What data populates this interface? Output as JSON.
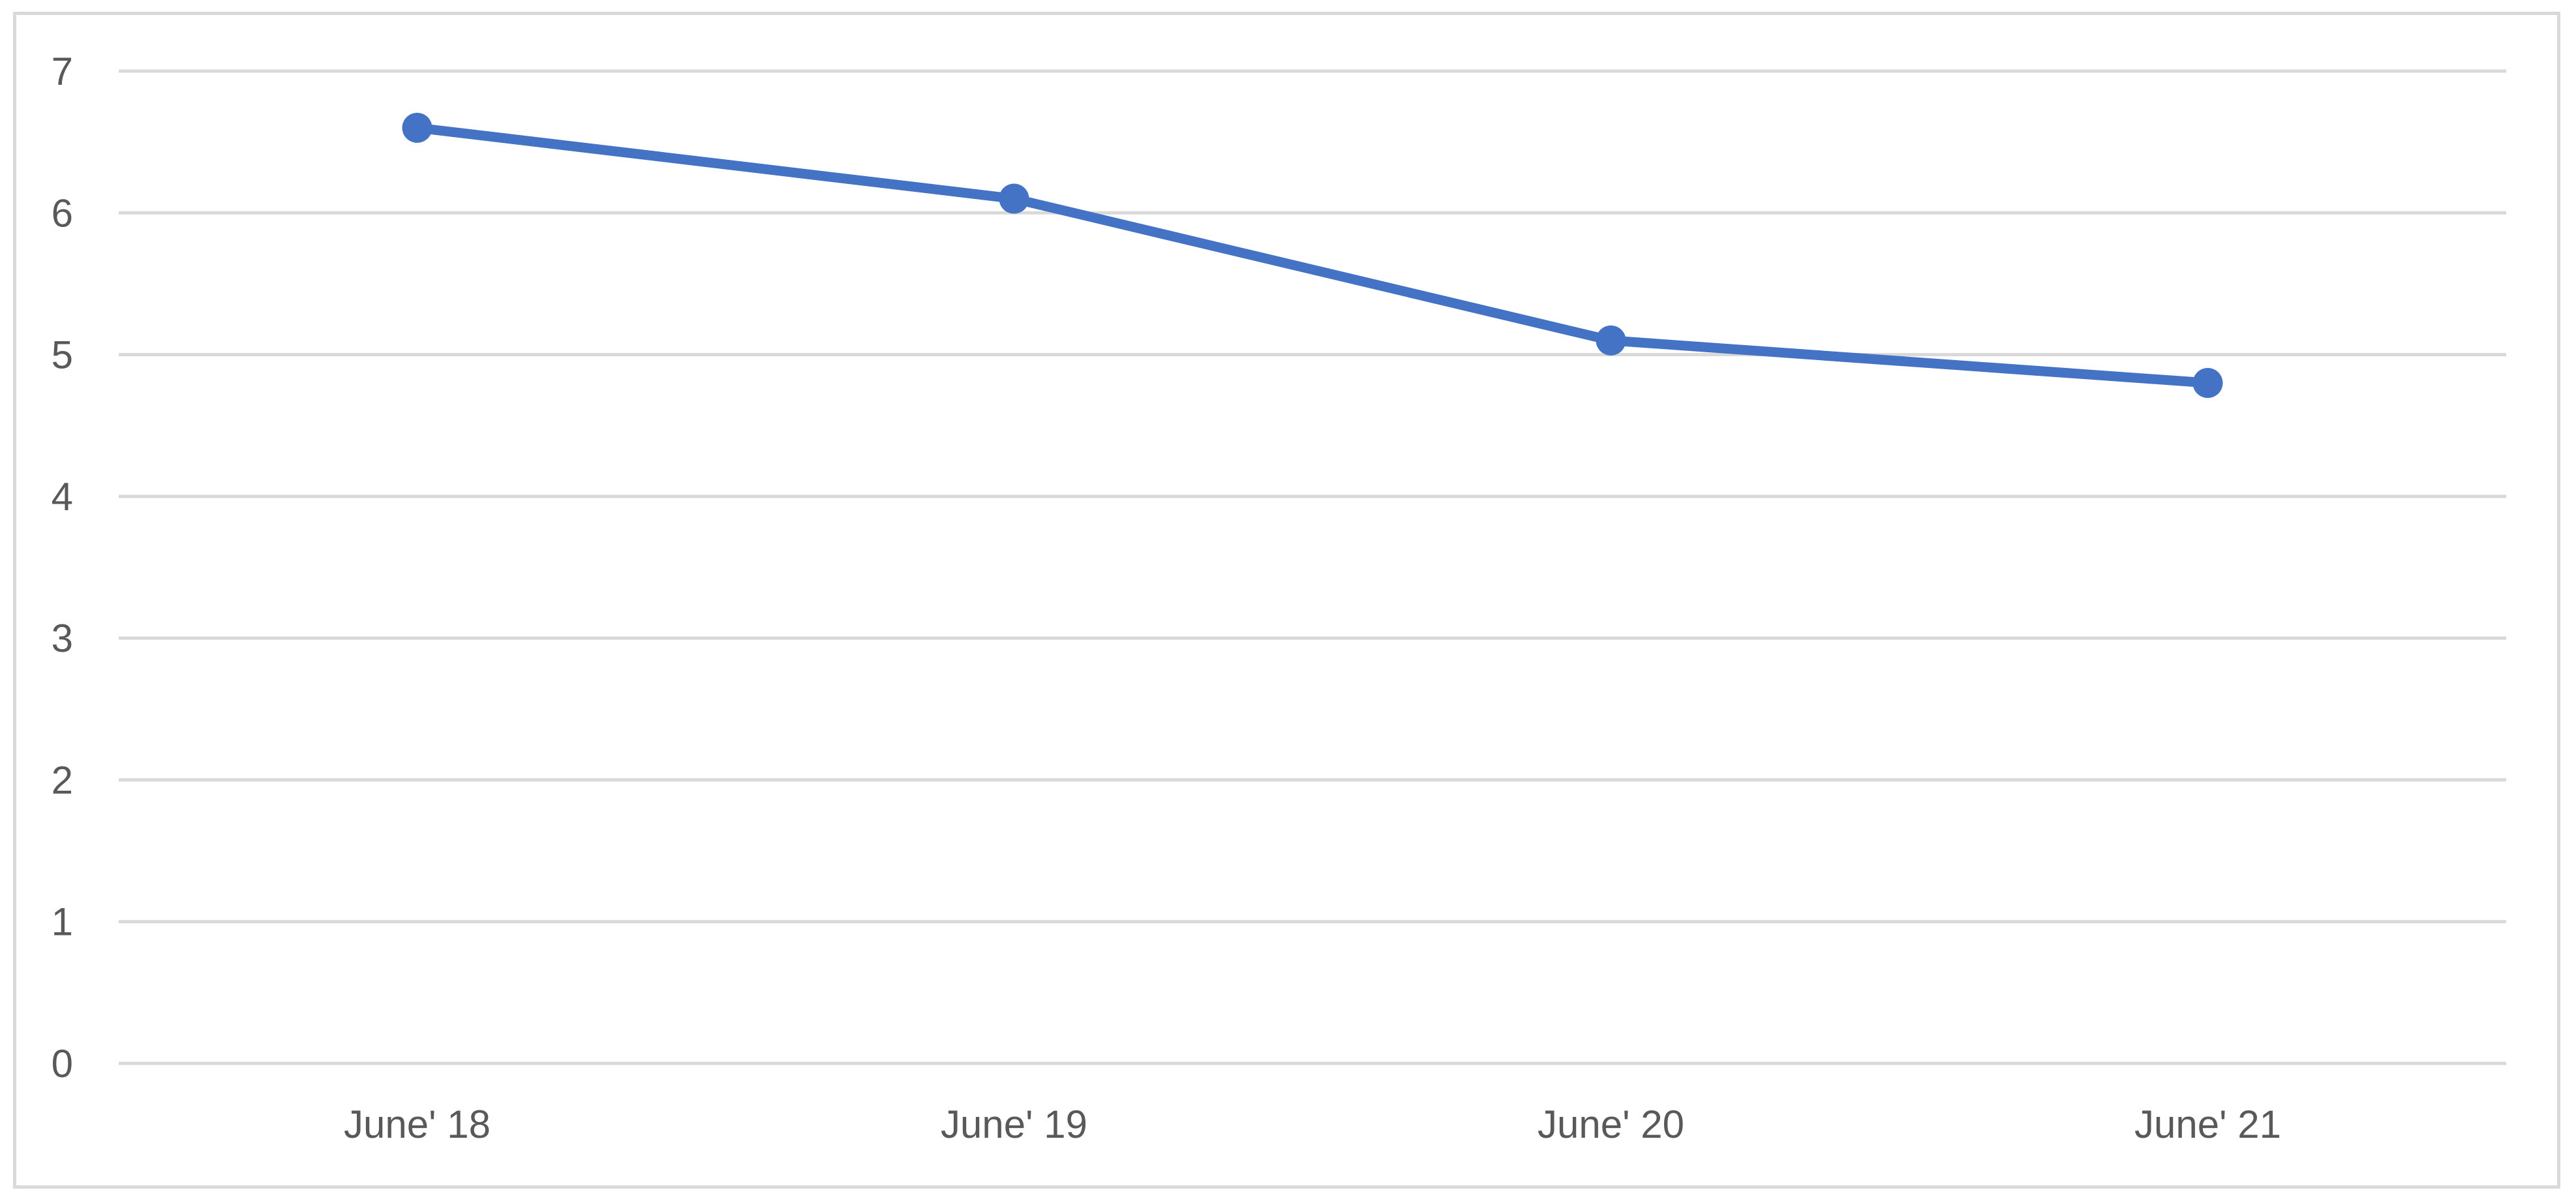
{
  "chart_data": {
    "type": "line",
    "title": "",
    "xlabel": "",
    "ylabel": "",
    "categories": [
      "June' 18",
      "June' 19",
      "June' 20",
      "June' 21"
    ],
    "series": [
      {
        "values": [
          6.6,
          6.1,
          5.1,
          4.8
        ]
      }
    ],
    "ylim": [
      0,
      7
    ],
    "yticks": [
      0,
      1,
      2,
      3,
      4,
      5,
      6,
      7
    ],
    "grid": true,
    "legend": "none",
    "colors": {
      "series": "#4472c4",
      "grid": "#d9d9d9",
      "tick_text": "#595959",
      "border": "#d9d9d9"
    }
  }
}
